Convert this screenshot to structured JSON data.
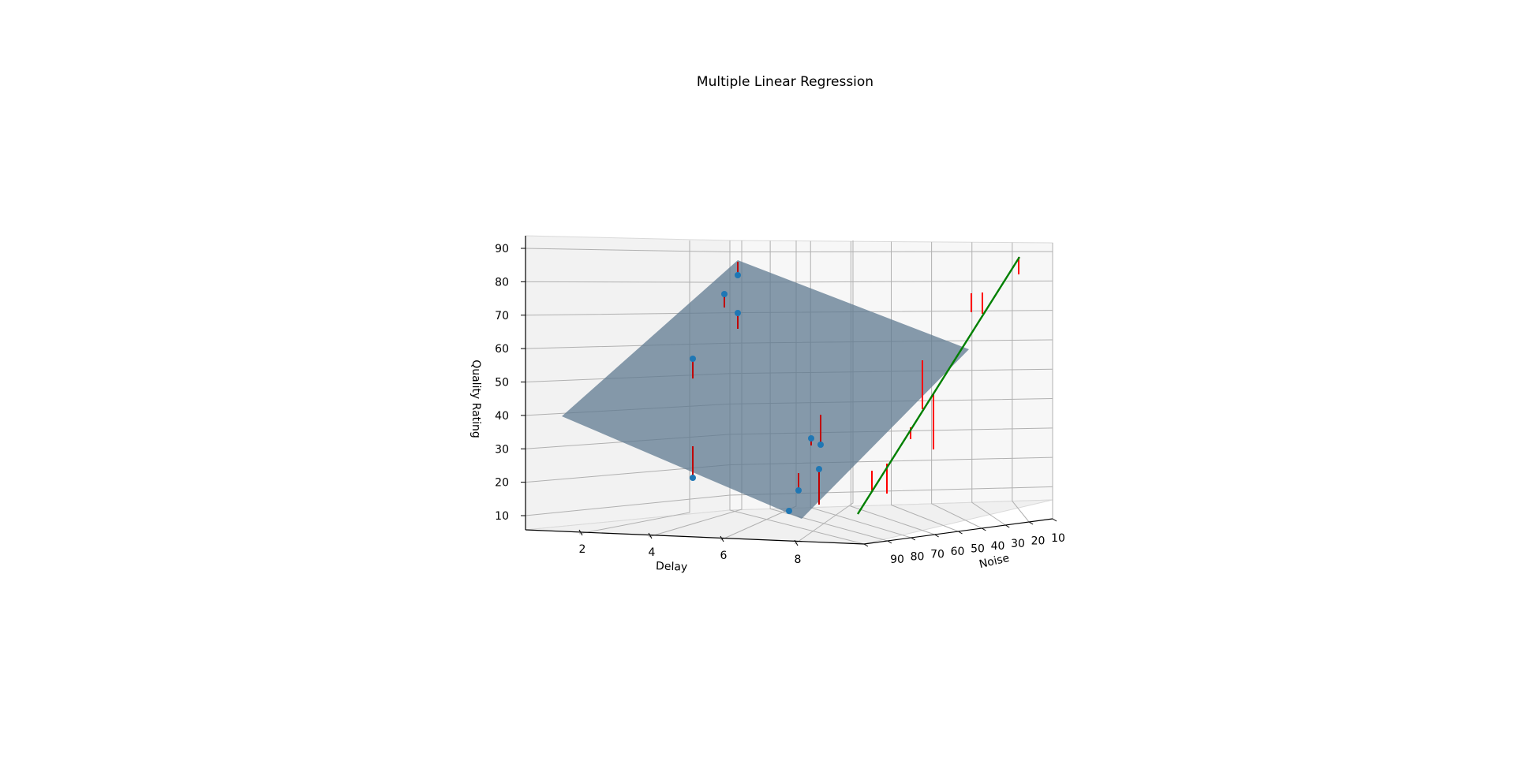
{
  "chart_data": {
    "type": "scatter",
    "subtype": "3d-regression",
    "title": "Multiple Linear Regression",
    "xlabel": "Delay",
    "ylabel": "Noise",
    "zlabel": "Quality Rating",
    "x_ticks": [
      "2",
      "4",
      "6",
      "8"
    ],
    "y_ticks": [
      "10",
      "20",
      "30",
      "40",
      "50",
      "60",
      "70",
      "80",
      "90"
    ],
    "z_ticks": [
      "10",
      "20",
      "30",
      "40",
      "50",
      "60",
      "70",
      "80",
      "90"
    ],
    "grid": true,
    "colors": {
      "points": "#1f77b4",
      "plane": "#5f7a90",
      "residuals": "#ff0000",
      "fit_line": "#008000"
    }
  }
}
